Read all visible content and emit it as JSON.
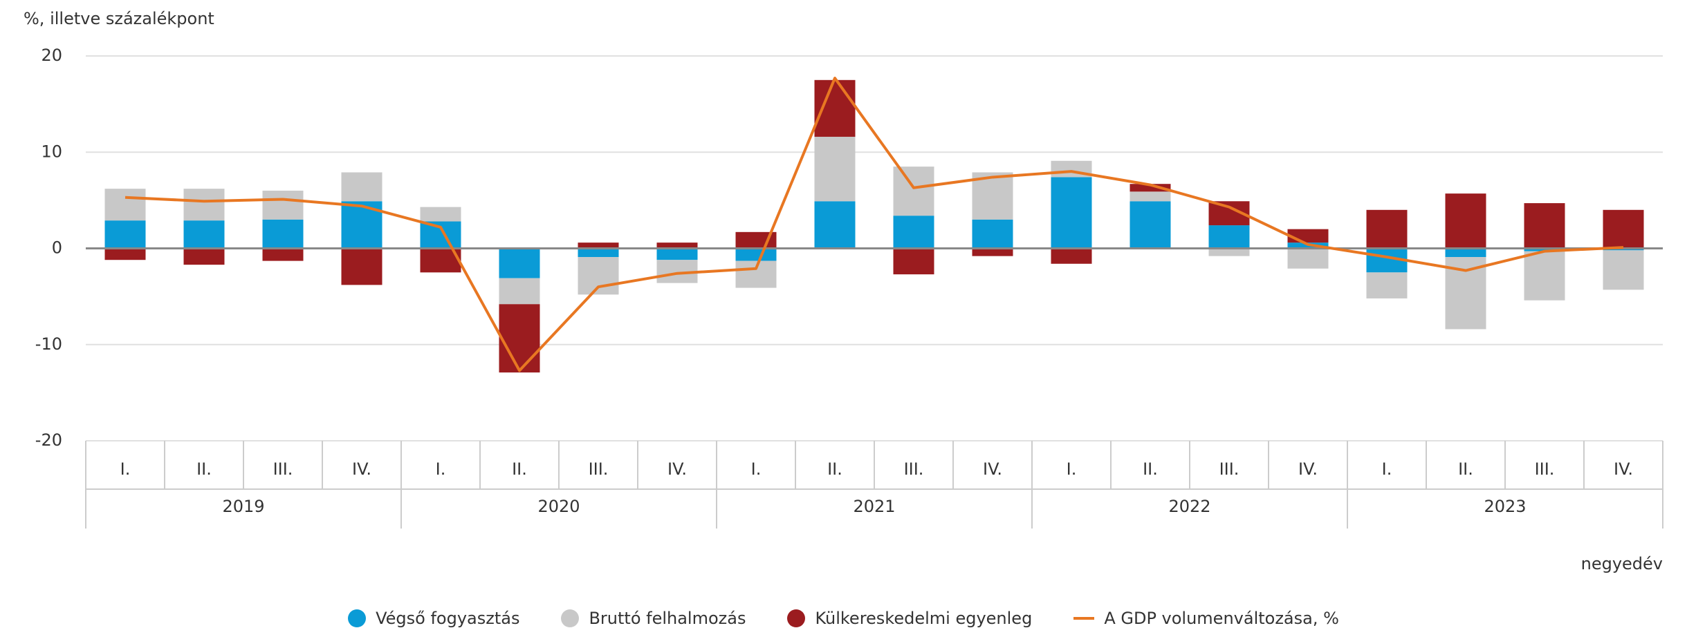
{
  "chart_data": {
    "type": "stacked_bar_line",
    "y_label": "%, illetve százalékpont",
    "x_label": "negyedév",
    "categories": [
      "I.",
      "II.",
      "III.",
      "IV.",
      "I.",
      "II.",
      "III.",
      "IV.",
      "I.",
      "II.",
      "III.",
      "IV.",
      "I.",
      "II.",
      "III.",
      "IV.",
      "I.",
      "II.",
      "III.",
      "IV."
    ],
    "groups": [
      "2019",
      "2020",
      "2021",
      "2022",
      "2023"
    ],
    "ylim": [
      -20,
      20
    ],
    "yticks": [
      -20,
      -10,
      0,
      10,
      20
    ],
    "grid": true,
    "series": [
      {
        "name": "Végső fogyasztás",
        "color": "#0a9bd6",
        "kind": "bar",
        "values": [
          2.9,
          2.9,
          3.0,
          4.9,
          2.8,
          -3.1,
          -0.9,
          -1.2,
          -1.3,
          4.9,
          3.4,
          3.0,
          7.4,
          4.9,
          2.4,
          0.6,
          -2.5,
          -0.9,
          -0.3,
          -0.2
        ]
      },
      {
        "name": "Bruttó felhalmozás",
        "color": "#c8c8c8",
        "kind": "bar",
        "values": [
          3.3,
          3.3,
          3.0,
          3.0,
          1.5,
          -2.7,
          -3.9,
          -2.4,
          -2.8,
          6.7,
          5.1,
          4.9,
          1.7,
          1.0,
          -0.8,
          -2.1,
          -2.7,
          -7.5,
          -5.1,
          -4.1
        ]
      },
      {
        "name": "Külkereskedelmi egyenleg",
        "color": "#9b1c1f",
        "kind": "bar",
        "values": [
          -1.2,
          -1.7,
          -1.3,
          -3.8,
          -2.5,
          -7.1,
          0.6,
          0.6,
          1.7,
          5.9,
          -2.7,
          -0.8,
          -1.6,
          0.8,
          2.5,
          1.4,
          4.0,
          5.7,
          4.7,
          4.0
        ]
      },
      {
        "name": "A GDP volumenváltozása, %",
        "color": "#e87722",
        "kind": "line",
        "values": [
          5.3,
          4.9,
          5.1,
          4.4,
          2.2,
          -12.7,
          -4.0,
          -2.6,
          -2.1,
          17.7,
          6.3,
          7.4,
          8.0,
          6.6,
          4.3,
          0.4,
          -0.9,
          -2.3,
          -0.3,
          0.1
        ]
      }
    ]
  }
}
